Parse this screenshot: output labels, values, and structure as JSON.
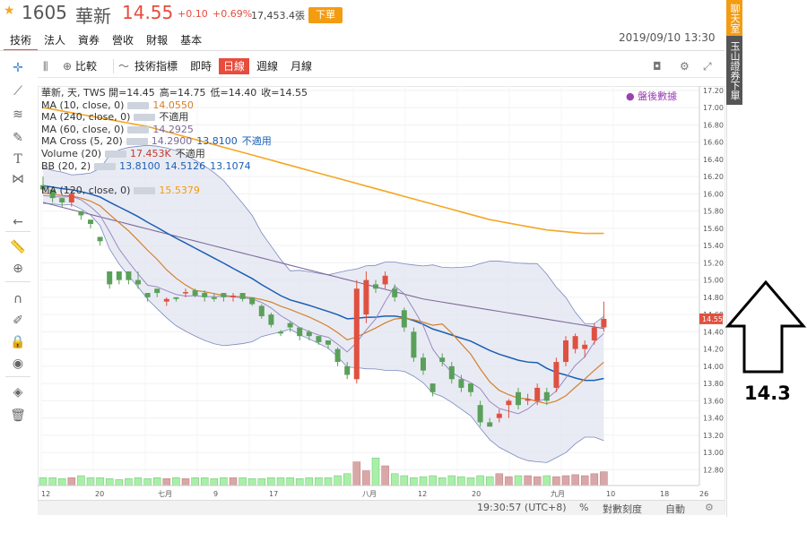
{
  "header": {
    "star": "★",
    "stock_code": "1605",
    "stock_name": "華新",
    "price": "14.55",
    "change": "+0.10",
    "change_pct": "+0.69%",
    "volume": "17,453.4張",
    "order_label": "下單"
  },
  "tabs": [
    "技術",
    "法人",
    "資券",
    "營收",
    "財報",
    "基本"
  ],
  "datetime": "2019/09/10 13:30",
  "sidebar": {
    "chat": "聊天室",
    "esun": "玉山證券下單"
  },
  "chart_toolbar": {
    "compare": "比較",
    "indicators": "技術指標",
    "realtime": "即時",
    "daily": "日線",
    "weekly": "週線",
    "monthly": "月線"
  },
  "legend": [
    {
      "name": "華新, 天, TWS",
      "values": [
        {
          "text": "開=14.45",
          "color": "#333333"
        },
        {
          "text": "高=14.75",
          "color": "#333333"
        },
        {
          "text": "低=14.40",
          "color": "#333333"
        },
        {
          "text": "收=14.55",
          "color": "#333333"
        }
      ],
      "box": false
    },
    {
      "name": "MA (10, close, 0)",
      "values": [
        {
          "text": "14.0550",
          "color": "#d4802a"
        }
      ],
      "box": true
    },
    {
      "name": "MA (240, close, 0)",
      "values": [
        {
          "text": "不適用",
          "color": "#333333"
        }
      ],
      "box": true
    },
    {
      "name": "MA (60, close, 0)",
      "values": [
        {
          "text": "14.2925",
          "color": "#7d6b9b"
        }
      ],
      "box": true
    },
    {
      "name": "MA Cross (5, 20)",
      "values": [
        {
          "text": "14.2900",
          "color": "#7d6b9b"
        },
        {
          "text": "13.8100",
          "color": "#1a5fb4"
        },
        {
          "text": "不適用",
          "color": "#1a5fb4"
        }
      ],
      "box": true
    },
    {
      "name": "Volume (20)",
      "values": [
        {
          "text": "17.453K",
          "color": "#c0392b"
        },
        {
          "text": "不適用",
          "color": "#333333"
        }
      ],
      "box": true
    },
    {
      "name": "BB (20, 2)",
      "values": [
        {
          "text": "13.8100",
          "color": "#1a5fb4"
        },
        {
          "text": "14.5126",
          "color": "#1a5fb4"
        },
        {
          "text": "13.1074",
          "color": "#1a5fb4"
        }
      ],
      "box": true
    },
    {
      "name": "",
      "values": [],
      "box": false
    },
    {
      "name": "MA (120, close, 0)",
      "values": [
        {
          "text": "15.5379",
          "color": "#f39c12"
        }
      ],
      "box": true
    }
  ],
  "after_hours": "● 盤後數據",
  "bottom_bar": {
    "time": "19:30:57 (UTC+8)",
    "percent": "%",
    "log": "對數刻度",
    "auto": "自動"
  },
  "annotation": {
    "value": "14.3"
  },
  "colors": {
    "up": "#e05040",
    "down": "#5aa05a",
    "ma10": "#d4802a",
    "ma60": "#7d6b9b",
    "ma20": "#1a5fb4",
    "ma120": "#f5a623",
    "bb_fill": "#dfe3f0"
  },
  "chart_data": {
    "type": "candlestick",
    "y_axis_ticks": [
      17.2,
      17.0,
      16.8,
      16.6,
      16.4,
      16.2,
      16.0,
      15.8,
      15.6,
      15.4,
      15.2,
      15.0,
      14.8,
      14.6,
      14.4,
      14.2,
      14.0,
      13.8,
      13.6,
      13.4,
      13.2,
      13.0,
      12.8
    ],
    "ylim": [
      12.7,
      17.25
    ],
    "last_price_label": "14.55",
    "x_axis_labels": [
      "12",
      "20",
      "七月",
      "9",
      "17",
      "八月",
      "12",
      "20",
      "九月",
      "10",
      "18",
      "26"
    ],
    "bars": 60,
    "candles": [
      [
        16.1,
        16.2,
        16.0,
        16.05
      ],
      [
        16.05,
        16.05,
        15.9,
        15.95
      ],
      [
        15.95,
        15.95,
        15.85,
        15.9
      ],
      [
        15.9,
        16.05,
        15.85,
        16.0
      ],
      [
        15.8,
        15.8,
        15.7,
        15.75
      ],
      [
        15.7,
        15.7,
        15.6,
        15.65
      ],
      [
        15.5,
        15.5,
        15.4,
        15.45
      ],
      [
        15.1,
        15.1,
        14.9,
        14.95
      ],
      [
        15.1,
        15.1,
        14.95,
        15.0
      ],
      [
        15.1,
        15.1,
        14.95,
        15.0
      ],
      [
        15.0,
        15.1,
        14.9,
        14.95
      ],
      [
        14.85,
        14.85,
        14.75,
        14.8
      ],
      [
        14.9,
        14.9,
        14.8,
        14.85
      ],
      [
        14.75,
        14.8,
        14.7,
        14.78
      ],
      [
        14.8,
        14.8,
        14.75,
        14.78
      ],
      [
        14.85,
        14.9,
        14.8,
        14.86
      ],
      [
        14.88,
        14.9,
        14.8,
        14.82
      ],
      [
        14.85,
        14.88,
        14.75,
        14.8
      ],
      [
        14.8,
        14.85,
        14.75,
        14.78
      ],
      [
        14.85,
        14.85,
        14.75,
        14.8
      ],
      [
        14.8,
        14.85,
        14.75,
        14.82
      ],
      [
        14.85,
        14.85,
        14.75,
        14.78
      ],
      [
        14.8,
        14.8,
        14.7,
        14.72
      ],
      [
        14.7,
        14.72,
        14.55,
        14.58
      ],
      [
        14.6,
        14.62,
        14.45,
        14.48
      ],
      [
        14.4,
        14.42,
        14.35,
        14.38
      ],
      [
        14.5,
        14.52,
        14.4,
        14.45
      ],
      [
        14.45,
        14.45,
        14.3,
        14.35
      ],
      [
        14.4,
        14.42,
        14.3,
        14.35
      ],
      [
        14.35,
        14.35,
        14.25,
        14.28
      ],
      [
        14.3,
        14.3,
        14.2,
        14.25
      ],
      [
        14.2,
        14.22,
        14.0,
        14.05
      ],
      [
        14.0,
        14.05,
        13.85,
        13.9
      ],
      [
        13.85,
        15.0,
        13.8,
        14.9
      ],
      [
        14.6,
        15.1,
        14.5,
        15.0
      ],
      [
        14.95,
        15.0,
        14.85,
        14.9
      ],
      [
        14.95,
        15.1,
        14.9,
        15.05
      ],
      [
        14.9,
        14.95,
        14.75,
        14.8
      ],
      [
        14.65,
        14.68,
        14.4,
        14.45
      ],
      [
        14.4,
        14.45,
        14.05,
        14.1
      ],
      [
        14.1,
        14.15,
        13.9,
        13.95
      ],
      [
        13.8,
        13.8,
        13.65,
        13.7
      ],
      [
        14.1,
        14.15,
        14.0,
        14.05
      ],
      [
        14.0,
        14.05,
        13.8,
        13.85
      ],
      [
        13.85,
        13.9,
        13.7,
        13.75
      ],
      [
        13.8,
        13.8,
        13.65,
        13.7
      ],
      [
        13.55,
        13.6,
        13.3,
        13.35
      ],
      [
        13.35,
        13.4,
        13.3,
        13.3
      ],
      [
        13.4,
        13.5,
        13.35,
        13.45
      ],
      [
        13.55,
        13.62,
        13.4,
        13.6
      ],
      [
        13.7,
        13.75,
        13.5,
        13.55
      ],
      [
        13.6,
        13.68,
        13.55,
        13.62
      ],
      [
        13.6,
        13.8,
        13.55,
        13.75
      ],
      [
        13.7,
        13.75,
        13.55,
        13.6
      ],
      [
        13.75,
        14.1,
        13.7,
        14.05
      ],
      [
        14.05,
        14.35,
        14.0,
        14.3
      ],
      [
        14.2,
        14.38,
        14.15,
        14.35
      ],
      [
        14.2,
        14.3,
        14.1,
        14.25
      ],
      [
        14.3,
        14.5,
        14.25,
        14.45
      ],
      [
        14.45,
        14.75,
        14.4,
        14.55
      ]
    ],
    "volume_relative": [
      0.08,
      0.08,
      0.07,
      0.08,
      0.1,
      0.08,
      0.08,
      0.07,
      0.06,
      0.07,
      0.08,
      0.07,
      0.08,
      0.07,
      0.08,
      0.07,
      0.08,
      0.08,
      0.07,
      0.08,
      0.08,
      0.08,
      0.07,
      0.07,
      0.08,
      0.08,
      0.08,
      0.07,
      0.08,
      0.08,
      0.08,
      0.1,
      0.12,
      0.24,
      0.15,
      0.28,
      0.2,
      0.12,
      0.1,
      0.08,
      0.09,
      0.1,
      0.08,
      0.1,
      0.09,
      0.08,
      0.1,
      0.09,
      0.12,
      0.09,
      0.1,
      0.1,
      0.09,
      0.1,
      0.09,
      0.1,
      0.11,
      0.1,
      0.12,
      0.14
    ],
    "ma120": [
      17.0,
      16.98,
      16.96,
      16.94,
      16.92,
      16.9,
      16.88,
      16.86,
      16.84,
      16.82,
      16.8,
      16.78,
      16.75,
      16.72,
      16.69,
      16.66,
      16.63,
      16.6,
      16.57,
      16.54,
      16.51,
      16.48,
      16.45,
      16.42,
      16.39,
      16.36,
      16.33,
      16.3,
      16.27,
      16.24,
      16.21,
      16.18,
      16.15,
      16.12,
      16.09,
      16.06,
      16.03,
      16.0,
      15.97,
      15.94,
      15.91,
      15.88,
      15.85,
      15.82,
      15.79,
      15.76,
      15.73,
      15.7,
      15.68,
      15.66,
      15.64,
      15.62,
      15.6,
      15.58,
      15.57,
      15.56,
      15.55,
      15.54,
      15.54,
      15.54
    ]
  }
}
